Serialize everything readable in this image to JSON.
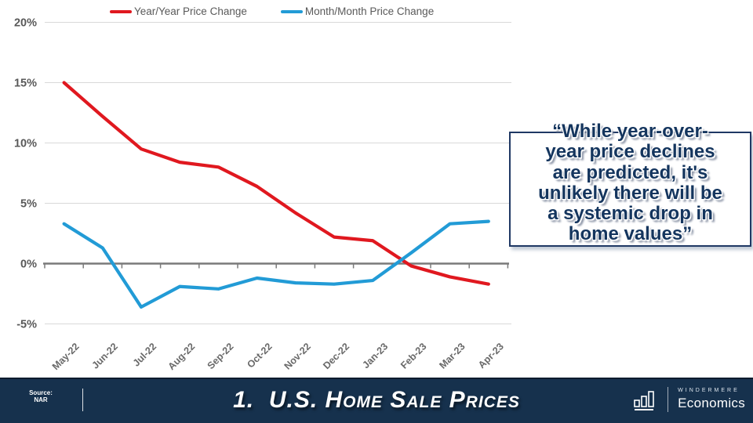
{
  "legend": [
    {
      "label": "Year/Year Price Change",
      "color": "#e0181f"
    },
    {
      "label": "Month/Month Price Change",
      "color": "#229bd6"
    }
  ],
  "chart_data": {
    "type": "line",
    "title": "",
    "xlabel": "",
    "ylabel": "",
    "ylim": [
      -5,
      20
    ],
    "grid": true,
    "legend_position": "top",
    "categories": [
      "May-22",
      "Jun-22",
      "Jul-22",
      "Aug-22",
      "Sep-22",
      "Oct-22",
      "Nov-22",
      "Dec-22",
      "Jan-23",
      "Feb-23",
      "Mar-23",
      "Apr-23"
    ],
    "yticks": [
      {
        "label": "20%",
        "value": 20
      },
      {
        "label": "15%",
        "value": 15
      },
      {
        "label": "10%",
        "value": 10
      },
      {
        "label": "5%",
        "value": 5
      },
      {
        "label": "0%",
        "value": 0
      },
      {
        "label": "-5%",
        "value": -5
      }
    ],
    "series": [
      {
        "name": "Year/Year Price Change",
        "color": "#e0181f",
        "values": [
          15.0,
          12.2,
          9.5,
          8.4,
          8.0,
          6.4,
          4.2,
          2.2,
          1.9,
          -0.2,
          -1.1,
          -1.7
        ]
      },
      {
        "name": "Month/Month Price Change",
        "color": "#229bd6",
        "values": [
          3.3,
          1.3,
          -3.6,
          -1.9,
          -2.1,
          -1.2,
          -1.6,
          -1.7,
          -1.4,
          0.9,
          3.3,
          3.5
        ]
      }
    ]
  },
  "quote": {
    "lines": [
      "“While year-over-",
      "year price declines",
      "are predicted, it's",
      "unlikely there will be",
      "a systemic drop in",
      "home values”"
    ]
  },
  "footer": {
    "source_label": "Source:",
    "source_value": "NAR",
    "title": "1.  U.S. Home Sale Prices",
    "brand_top": "WINDERMERE",
    "brand_bottom": "Economics"
  }
}
